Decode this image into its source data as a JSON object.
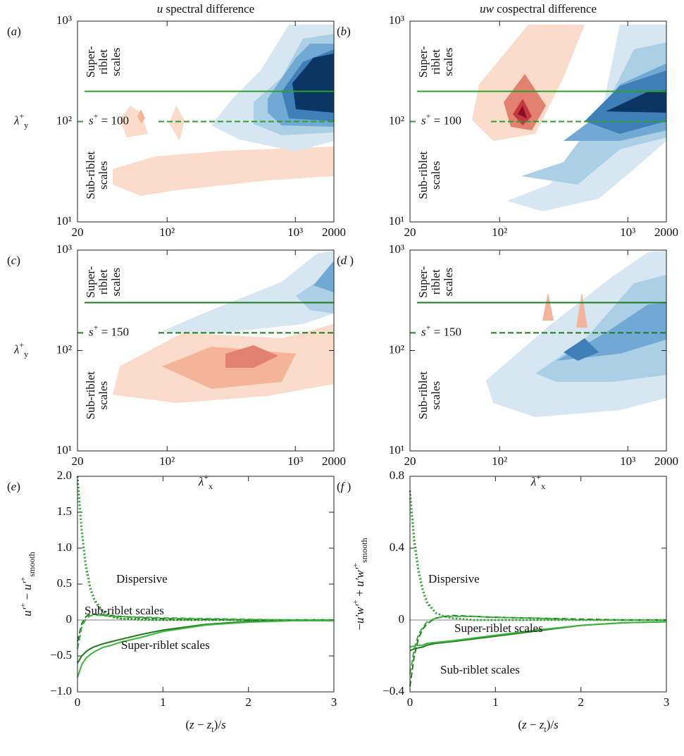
{
  "chart_data": [
    {
      "type": "contour",
      "panel": [
        {
          "text": "(",
          "style": "n"
        },
        {
          "text": "a",
          "style": "i"
        },
        {
          "text": ")",
          "style": "n"
        }
      ],
      "title": [
        {
          "text": "u",
          "style": "i"
        },
        {
          "text": " spectral difference",
          "style": "n"
        }
      ],
      "ylabel": [
        {
          "text": "λ",
          "style": "i"
        },
        {
          "text": "+",
          "style": "sup"
        },
        {
          "text": "y",
          "style": "sub"
        }
      ],
      "xlim": [
        20,
        2000
      ],
      "ylim": [
        10,
        1000
      ],
      "log": true,
      "xticks": [
        20,
        {
          "value": 100,
          "label": "10²"
        },
        {
          "value": 1000,
          "label": "10³"
        },
        2000
      ],
      "yticks": [
        {
          "value": 10,
          "label": "10¹"
        },
        {
          "value": 100,
          "label": "10²"
        },
        {
          "value": 1000,
          "label": "10³"
        }
      ],
      "hlines": [
        {
          "value": 200,
          "style": "solid",
          "color": "#2ca02c"
        },
        {
          "value": 100,
          "style": "dashed",
          "color": "#2ca02c"
        }
      ],
      "hline_label": [
        {
          "text": "s",
          "style": "i"
        },
        {
          "text": "+",
          "style": "sup"
        },
        {
          "text": " = 100",
          "style": "n"
        }
      ],
      "super_label": [
        "Super-",
        "riblet",
        "scales"
      ],
      "sub_label": [
        "Sub-riblet",
        "scales"
      ]
    },
    {
      "type": "contour",
      "panel": [
        {
          "text": "(",
          "style": "n"
        },
        {
          "text": "b",
          "style": "i"
        },
        {
          "text": ")",
          "style": "n"
        }
      ],
      "title": [
        {
          "text": "uw",
          "style": "i"
        },
        {
          "text": " cospectral difference",
          "style": "n"
        }
      ],
      "xlim": [
        20,
        2000
      ],
      "ylim": [
        10,
        1000
      ],
      "log": true,
      "xticks": [
        20,
        {
          "value": 100,
          "label": "10²"
        },
        {
          "value": 1000,
          "label": "10³"
        },
        2000
      ],
      "yticks": [
        {
          "value": 10,
          "label": "10¹"
        },
        {
          "value": 100,
          "label": "10²"
        },
        {
          "value": 1000,
          "label": "10³"
        }
      ],
      "hlines": [
        {
          "value": 200,
          "style": "solid",
          "color": "#2ca02c"
        },
        {
          "value": 100,
          "style": "dashed",
          "color": "#2ca02c"
        }
      ],
      "hline_label": [
        {
          "text": "s",
          "style": "i"
        },
        {
          "text": "+",
          "style": "sup"
        },
        {
          "text": " = 100",
          "style": "n"
        }
      ],
      "super_label": [
        "Super-",
        "riblet",
        "scales"
      ],
      "sub_label": [
        "Sub-riblet",
        "scales"
      ]
    },
    {
      "type": "contour",
      "panel": [
        {
          "text": "(",
          "style": "n"
        },
        {
          "text": "c",
          "style": "i"
        },
        {
          "text": ")",
          "style": "n"
        }
      ],
      "ylabel": [
        {
          "text": "λ",
          "style": "i"
        },
        {
          "text": "+",
          "style": "sup"
        },
        {
          "text": "y",
          "style": "sub"
        }
      ],
      "xlabel": [
        {
          "text": "λ",
          "style": "i"
        },
        {
          "text": "+",
          "style": "sup"
        },
        {
          "text": "x",
          "style": "sub"
        }
      ],
      "xlim": [
        20,
        2000
      ],
      "ylim": [
        10,
        1000
      ],
      "log": true,
      "xticks": [
        20,
        {
          "value": 100,
          "label": "10²"
        },
        {
          "value": 1000,
          "label": "10³"
        },
        2000
      ],
      "yticks": [
        {
          "value": 10,
          "label": "10¹"
        },
        {
          "value": 100,
          "label": "10²"
        },
        {
          "value": 1000,
          "label": "10³"
        }
      ],
      "hlines": [
        {
          "value": 300,
          "style": "solid",
          "color": "#1e7b1e"
        },
        {
          "value": 150,
          "style": "dashed",
          "color": "#1e7b1e"
        }
      ],
      "hline_label": [
        {
          "text": "s",
          "style": "i"
        },
        {
          "text": "+",
          "style": "sup"
        },
        {
          "text": " = 150",
          "style": "n"
        }
      ],
      "super_label": [
        "Super-",
        "riblet",
        "scales"
      ],
      "sub_label": [
        "Sub-riblet",
        "scales"
      ]
    },
    {
      "type": "contour",
      "panel": [
        {
          "text": "(",
          "style": "n"
        },
        {
          "text": "d",
          "style": "i"
        },
        {
          "text": " )",
          "style": "n"
        }
      ],
      "xlabel": [
        {
          "text": "λ",
          "style": "i"
        },
        {
          "text": "+",
          "style": "sup"
        },
        {
          "text": "x",
          "style": "sub"
        }
      ],
      "xlim": [
        20,
        2000
      ],
      "ylim": [
        10,
        1000
      ],
      "log": true,
      "xticks": [
        20,
        {
          "value": 100,
          "label": "10²"
        },
        {
          "value": 1000,
          "label": "10³"
        },
        2000
      ],
      "yticks": [
        {
          "value": 10,
          "label": "10¹"
        },
        {
          "value": 100,
          "label": "10²"
        },
        {
          "value": 1000,
          "label": "10³"
        }
      ],
      "hlines": [
        {
          "value": 300,
          "style": "solid",
          "color": "#1e7b1e"
        },
        {
          "value": 150,
          "style": "dashed",
          "color": "#1e7b1e"
        }
      ],
      "hline_label": [
        {
          "text": "s",
          "style": "i"
        },
        {
          "text": "+",
          "style": "sup"
        },
        {
          "text": " = 150",
          "style": "n"
        }
      ],
      "super_label": [
        "Super-",
        "riblet",
        "scales"
      ],
      "sub_label": [
        "Sub-riblet",
        "scales"
      ]
    },
    {
      "type": "line",
      "panel": [
        {
          "text": "(",
          "style": "n"
        },
        {
          "text": "e",
          "style": "i"
        },
        {
          "text": ")",
          "style": "n"
        }
      ],
      "ylabel": [
        {
          "text": "u′",
          "style": "i"
        },
        {
          "text": "+",
          "style": "sup"
        },
        {
          "text": " − ",
          "style": "n"
        },
        {
          "text": "u′",
          "style": "i"
        },
        {
          "text": "+",
          "style": "sup"
        },
        {
          "text": "smooth",
          "style": "sub"
        }
      ],
      "xlabel": [
        {
          "text": "(",
          "style": "n"
        },
        {
          "text": "z",
          "style": "i"
        },
        {
          "text": " − ",
          "style": "n"
        },
        {
          "text": "z",
          "style": "i"
        },
        {
          "text": "t",
          "style": "sub"
        },
        {
          "text": ")/",
          "style": "n"
        },
        {
          "text": "s",
          "style": "i"
        }
      ],
      "xlim": [
        0,
        3
      ],
      "ylim": [
        -1,
        2
      ],
      "xticks": [
        0,
        1,
        2,
        3
      ],
      "yticks": [
        {
          "value": -1,
          "label": "−1.0"
        },
        {
          "value": -0.5,
          "label": "−0.5"
        },
        0,
        0.5,
        {
          "value": 1,
          "label": "1.0"
        },
        1.5,
        {
          "value": 2,
          "label": "2.0"
        }
      ],
      "x": [
        0,
        0.05,
        0.1,
        0.15,
        0.2,
        0.3,
        0.4,
        0.5,
        0.75,
        1,
        1.5,
        2,
        2.5,
        3
      ],
      "series": [
        {
          "color": "#1e7b1e",
          "style": "dotted",
          "values": [
            2.0,
            1.25,
            0.75,
            0.45,
            0.28,
            0.12,
            0.05,
            0.02,
            0.01,
            0,
            0,
            0,
            0,
            0
          ]
        },
        {
          "color": "#3cb43c",
          "style": "dotted",
          "values": [
            1.9,
            1.2,
            0.7,
            0.42,
            0.26,
            0.1,
            0.04,
            0.02,
            0,
            0,
            0,
            0,
            0,
            0
          ]
        },
        {
          "color": "#1e7b1e",
          "style": "dashed",
          "values": [
            -0.3,
            -0.05,
            0.05,
            0.08,
            0.08,
            0.07,
            0.06,
            0.05,
            0.03,
            0.02,
            0.01,
            0,
            0,
            0
          ]
        },
        {
          "color": "#3cb43c",
          "style": "dashed",
          "values": [
            -0.4,
            -0.1,
            0.02,
            0.06,
            0.07,
            0.06,
            0.05,
            0.05,
            0.04,
            0.03,
            0.02,
            0.01,
            0,
            0
          ]
        },
        {
          "color": "#1e7b1e",
          "style": "solid",
          "values": [
            -0.6,
            -0.5,
            -0.44,
            -0.4,
            -0.37,
            -0.33,
            -0.3,
            -0.27,
            -0.2,
            -0.14,
            -0.06,
            -0.02,
            -0.01,
            -0.01
          ]
        },
        {
          "color": "#3cb43c",
          "style": "solid",
          "values": [
            -0.8,
            -0.62,
            -0.53,
            -0.48,
            -0.44,
            -0.38,
            -0.35,
            -0.31,
            -0.24,
            -0.16,
            -0.07,
            -0.03,
            -0.01,
            -0.01
          ]
        }
      ],
      "annotations": [
        "Dispersive",
        "Sub-riblet scales",
        "Super-riblet scales"
      ]
    },
    {
      "type": "line",
      "panel": [
        {
          "text": "(",
          "style": "n"
        },
        {
          "text": "f",
          "style": "i"
        },
        {
          "text": " )",
          "style": "n"
        }
      ],
      "ylabel": [
        {
          "text": "−",
          "style": "n"
        },
        {
          "text": "u′w′",
          "style": "i"
        },
        {
          "text": "+",
          "style": "sup"
        },
        {
          "text": " + ",
          "style": "n"
        },
        {
          "text": "u′w′",
          "style": "i"
        },
        {
          "text": "+",
          "style": "sup"
        },
        {
          "text": "smooth",
          "style": "sub"
        }
      ],
      "xlabel": [
        {
          "text": "(",
          "style": "n"
        },
        {
          "text": "z",
          "style": "i"
        },
        {
          "text": " − ",
          "style": "n"
        },
        {
          "text": "z",
          "style": "i"
        },
        {
          "text": "t",
          "style": "sub"
        },
        {
          "text": ")/",
          "style": "n"
        },
        {
          "text": "s",
          "style": "i"
        }
      ],
      "xlim": [
        0,
        3
      ],
      "ylim": [
        -0.4,
        0.8
      ],
      "xticks": [
        0,
        1,
        2,
        3
      ],
      "yticks": [
        {
          "value": -0.4,
          "label": "−0.4"
        },
        0,
        0.4,
        0.8
      ],
      "x": [
        0,
        0.05,
        0.1,
        0.15,
        0.2,
        0.3,
        0.4,
        0.5,
        0.75,
        1,
        1.5,
        2,
        2.5,
        3
      ],
      "series": [
        {
          "color": "#1e7b1e",
          "style": "dotted",
          "values": [
            0.72,
            0.45,
            0.28,
            0.17,
            0.1,
            0.04,
            0.02,
            0.01,
            0,
            0,
            0,
            0,
            0,
            0
          ]
        },
        {
          "color": "#3cb43c",
          "style": "dotted",
          "values": [
            0.68,
            0.42,
            0.26,
            0.16,
            0.09,
            0.04,
            0.02,
            0.01,
            0,
            0,
            0,
            0,
            0,
            0
          ]
        },
        {
          "color": "#1e7b1e",
          "style": "dashed",
          "values": [
            -0.37,
            -0.2,
            -0.1,
            -0.05,
            -0.02,
            0.01,
            0.02,
            0.025,
            0.02,
            0.015,
            0.01,
            0.005,
            0,
            0
          ]
        },
        {
          "color": "#3cb43c",
          "style": "dashed",
          "values": [
            -0.3,
            -0.16,
            -0.08,
            -0.04,
            -0.01,
            0.01,
            0.02,
            0.02,
            0.02,
            0.015,
            0.01,
            0,
            0,
            0
          ]
        },
        {
          "color": "#1e7b1e",
          "style": "solid",
          "values": [
            -0.17,
            -0.16,
            -0.155,
            -0.15,
            -0.14,
            -0.13,
            -0.125,
            -0.12,
            -0.105,
            -0.09,
            -0.06,
            -0.03,
            -0.015,
            -0.01
          ]
        },
        {
          "color": "#3cb43c",
          "style": "solid",
          "values": [
            -0.15,
            -0.145,
            -0.14,
            -0.14,
            -0.13,
            -0.125,
            -0.12,
            -0.115,
            -0.1,
            -0.085,
            -0.055,
            -0.03,
            -0.015,
            -0.01
          ]
        }
      ],
      "annotations": [
        "Dispersive",
        "Super-riblet scales",
        "Sub-riblet scales"
      ]
    }
  ]
}
